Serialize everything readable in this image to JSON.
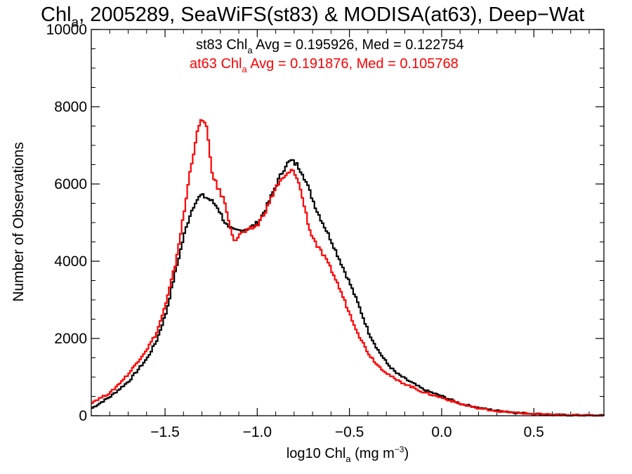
{
  "chart_data": {
    "type": "line",
    "title_parts": [
      "Chl",
      "a",
      ", 2005289, SeaWiFS(st83) & MODISA(at63), Deep−Wat"
    ],
    "xlabel_parts": [
      "log10 Chl",
      "a",
      " (mg m",
      "−3",
      ")"
    ],
    "ylabel": "Number of Observations",
    "xlim": [
      -1.9,
      0.88
    ],
    "ylim": [
      0,
      10000
    ],
    "x_ticks": [
      -1.5,
      -1.0,
      -0.5,
      0.0,
      0.5
    ],
    "x_tick_labels": [
      "−1.5",
      "−1.0",
      "−0.5",
      "0.0",
      "0.5"
    ],
    "y_ticks": [
      0,
      2000,
      4000,
      6000,
      8000,
      10000
    ],
    "y_tick_labels": [
      "0",
      "2000",
      "4000",
      "6000",
      "8000",
      "10000"
    ],
    "legend_placement": "top-center",
    "annotations": [
      {
        "parts": [
          "st83 Chl",
          "a",
          " Avg = 0.195926, Med = 0.122754"
        ],
        "color": "#000000"
      },
      {
        "parts": [
          "at63 Chl",
          "a",
          " Avg = 0.191876, Med = 0.105768"
        ],
        "color": "#ff0000"
      }
    ],
    "series": [
      {
        "name": "st83",
        "color": "#000000",
        "x": [
          -1.9,
          -1.8,
          -1.7,
          -1.6,
          -1.55,
          -1.5,
          -1.45,
          -1.4,
          -1.37,
          -1.34,
          -1.31,
          -1.28,
          -1.25,
          -1.22,
          -1.19,
          -1.16,
          -1.13,
          -1.1,
          -1.05,
          -1.0,
          -0.95,
          -0.9,
          -0.85,
          -0.82,
          -0.79,
          -0.76,
          -0.72,
          -0.68,
          -0.64,
          -0.6,
          -0.55,
          -0.5,
          -0.45,
          -0.4,
          -0.35,
          -0.3,
          -0.25,
          -0.2,
          -0.1,
          0.0,
          0.1,
          0.2,
          0.3,
          0.4,
          0.5,
          0.6,
          0.7,
          0.8,
          0.88
        ],
        "y": [
          200,
          500,
          900,
          1500,
          1950,
          2650,
          3700,
          4700,
          5200,
          5550,
          5700,
          5650,
          5550,
          5400,
          5100,
          4850,
          4800,
          4800,
          4850,
          5000,
          5450,
          6000,
          6500,
          6600,
          6500,
          6300,
          5800,
          5300,
          4900,
          4500,
          3950,
          3400,
          2800,
          2150,
          1700,
          1350,
          1100,
          950,
          670,
          500,
          310,
          200,
          130,
          80,
          50,
          25,
          15,
          8,
          5
        ]
      },
      {
        "name": "at63",
        "color": "#ff0000",
        "x": [
          -1.9,
          -1.8,
          -1.7,
          -1.6,
          -1.55,
          -1.5,
          -1.45,
          -1.4,
          -1.37,
          -1.34,
          -1.32,
          -1.3,
          -1.28,
          -1.25,
          -1.22,
          -1.19,
          -1.16,
          -1.13,
          -1.1,
          -1.05,
          -1.0,
          -0.95,
          -0.9,
          -0.85,
          -0.82,
          -0.79,
          -0.76,
          -0.72,
          -0.68,
          -0.64,
          -0.6,
          -0.55,
          -0.5,
          -0.45,
          -0.4,
          -0.35,
          -0.3,
          -0.25,
          -0.2,
          -0.1,
          0.0,
          0.1,
          0.2,
          0.3,
          0.4,
          0.5,
          0.6,
          0.7,
          0.8,
          0.88
        ],
        "y": [
          350,
          600,
          1100,
          1750,
          2150,
          2900,
          3900,
          5300,
          6300,
          7100,
          7500,
          7700,
          7450,
          6300,
          5900,
          5650,
          5100,
          4500,
          4700,
          4800,
          4950,
          5400,
          5950,
          6200,
          6350,
          6200,
          5650,
          4800,
          4400,
          4100,
          3750,
          3200,
          2600,
          2050,
          1600,
          1300,
          1100,
          920,
          820,
          600,
          460,
          300,
          190,
          120,
          75,
          45,
          22,
          12,
          6,
          4
        ]
      }
    ]
  }
}
